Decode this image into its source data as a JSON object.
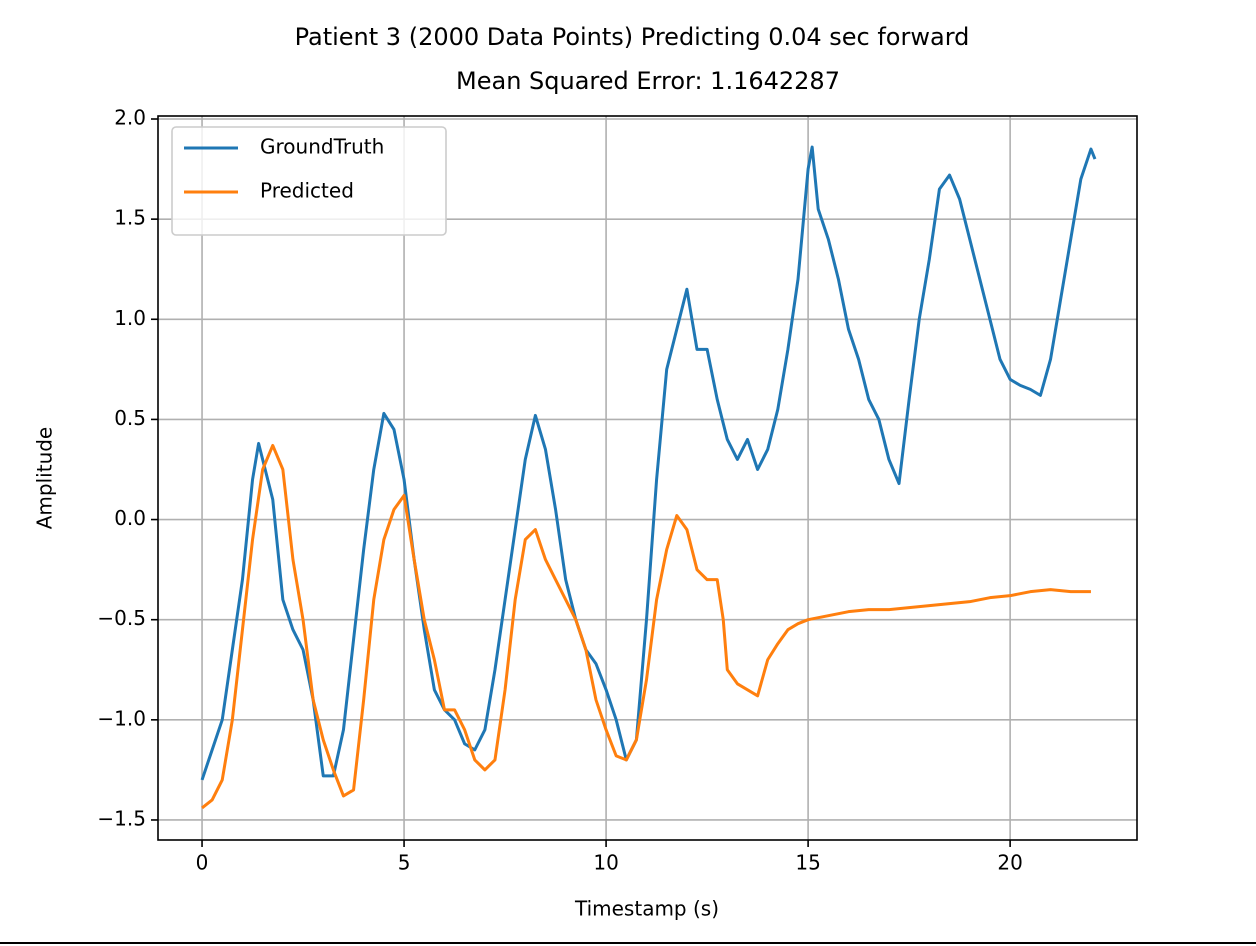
{
  "chart_data": {
    "type": "line",
    "title": "Patient 3 (2000 Data Points) Predicting 0.04 sec forward",
    "subtitle": "Mean Squared Error: 1.1642287",
    "x_label": "Timestamp (s)",
    "y_label": "Amplitude",
    "xlim": [
      -1.09,
      23.14
    ],
    "ylim": [
      -1.6,
      2.015
    ],
    "xticks": [
      0,
      5,
      10,
      15,
      20
    ],
    "yticks": [
      {
        "value": -1.5,
        "label": "−1.5"
      },
      {
        "value": -1.0,
        "label": "−1.0"
      },
      {
        "value": -0.5,
        "label": "−0.5"
      },
      {
        "value": 0,
        "label": "0.0"
      },
      0.5,
      {
        "value": 1.0,
        "label": "1.0"
      },
      1.5,
      {
        "value": 2.0,
        "label": "2.0"
      }
    ],
    "grid": true,
    "legend": "upper left",
    "series": [
      {
        "name": "GroundTruth",
        "color": "#1f77b4",
        "x": [
          0,
          0.25,
          0.5,
          0.75,
          1.0,
          1.25,
          1.4,
          1.5,
          1.75,
          2.0,
          2.25,
          2.5,
          2.75,
          3.0,
          3.25,
          3.5,
          3.75,
          4.0,
          4.25,
          4.5,
          4.75,
          5.0,
          5.25,
          5.5,
          5.75,
          6.0,
          6.25,
          6.5,
          6.75,
          7.0,
          7.25,
          7.5,
          7.75,
          8.0,
          8.25,
          8.5,
          8.75,
          9.0,
          9.25,
          9.5,
          9.75,
          10.0,
          10.25,
          10.5,
          10.75,
          11.0,
          11.25,
          11.5,
          11.75,
          12.0,
          12.25,
          12.5,
          12.75,
          13.0,
          13.25,
          13.5,
          13.75,
          14.0,
          14.25,
          14.5,
          14.75,
          15.0,
          15.1,
          15.25,
          15.5,
          15.75,
          16.0,
          16.25,
          16.5,
          16.75,
          17.0,
          17.25,
          17.5,
          17.75,
          18.0,
          18.25,
          18.5,
          18.75,
          19.0,
          19.25,
          19.5,
          19.75,
          20.0,
          20.25,
          20.5,
          20.75,
          21.0,
          21.25,
          21.5,
          21.75,
          22.0,
          22.1
        ],
        "values": [
          -1.3,
          -1.15,
          -1.0,
          -0.65,
          -0.3,
          0.2,
          0.38,
          0.3,
          0.1,
          -0.4,
          -0.55,
          -0.65,
          -0.9,
          -1.28,
          -1.28,
          -1.05,
          -0.6,
          -0.15,
          0.25,
          0.53,
          0.45,
          0.2,
          -0.2,
          -0.55,
          -0.85,
          -0.95,
          -1.0,
          -1.12,
          -1.15,
          -1.05,
          -0.75,
          -0.4,
          -0.05,
          0.3,
          0.52,
          0.35,
          0.05,
          -0.3,
          -0.5,
          -0.65,
          -0.72,
          -0.85,
          -1.0,
          -1.2,
          -1.1,
          -0.5,
          0.2,
          0.75,
          0.95,
          1.15,
          0.85,
          0.85,
          0.6,
          0.4,
          0.3,
          0.4,
          0.25,
          0.35,
          0.55,
          0.85,
          1.2,
          1.75,
          1.86,
          1.55,
          1.4,
          1.2,
          0.95,
          0.8,
          0.6,
          0.5,
          0.3,
          0.18,
          0.6,
          1.0,
          1.3,
          1.65,
          1.72,
          1.6,
          1.4,
          1.2,
          1.0,
          0.8,
          0.7,
          0.67,
          0.65,
          0.62,
          0.8,
          1.1,
          1.4,
          1.7,
          1.85,
          1.8
        ]
      },
      {
        "name": "Predicted",
        "color": "#ff7f0e",
        "x": [
          0,
          0.25,
          0.5,
          0.75,
          1.0,
          1.25,
          1.5,
          1.75,
          2.0,
          2.25,
          2.5,
          2.75,
          3.0,
          3.25,
          3.5,
          3.75,
          4.0,
          4.25,
          4.5,
          4.75,
          5.0,
          5.25,
          5.5,
          5.75,
          6.0,
          6.25,
          6.5,
          6.75,
          7.0,
          7.25,
          7.5,
          7.75,
          8.0,
          8.25,
          8.5,
          8.75,
          9.0,
          9.25,
          9.5,
          9.75,
          10.0,
          10.25,
          10.5,
          10.75,
          11.0,
          11.25,
          11.5,
          11.75,
          12.0,
          12.25,
          12.5,
          12.75,
          12.9,
          13.0,
          13.25,
          13.5,
          13.75,
          14.0,
          14.25,
          14.5,
          14.75,
          15.0,
          15.5,
          16.0,
          16.5,
          17.0,
          17.5,
          18.0,
          18.5,
          19.0,
          19.5,
          20.0,
          20.5,
          21.0,
          21.5,
          22.0
        ],
        "values": [
          -1.44,
          -1.4,
          -1.3,
          -1.0,
          -0.55,
          -0.1,
          0.25,
          0.37,
          0.25,
          -0.2,
          -0.5,
          -0.9,
          -1.1,
          -1.25,
          -1.38,
          -1.35,
          -0.9,
          -0.4,
          -0.1,
          0.05,
          0.12,
          -0.2,
          -0.5,
          -0.7,
          -0.95,
          -0.95,
          -1.05,
          -1.2,
          -1.25,
          -1.2,
          -0.85,
          -0.4,
          -0.1,
          -0.05,
          -0.2,
          -0.3,
          -0.4,
          -0.5,
          -0.65,
          -0.9,
          -1.05,
          -1.18,
          -1.2,
          -1.1,
          -0.8,
          -0.4,
          -0.15,
          0.02,
          -0.05,
          -0.25,
          -0.3,
          -0.3,
          -0.5,
          -0.75,
          -0.82,
          -0.85,
          -0.88,
          -0.7,
          -0.62,
          -0.55,
          -0.52,
          -0.5,
          -0.48,
          -0.46,
          -0.45,
          -0.45,
          -0.44,
          -0.43,
          -0.42,
          -0.41,
          -0.39,
          -0.38,
          -0.36,
          -0.35,
          -0.36,
          -0.36
        ]
      }
    ]
  }
}
